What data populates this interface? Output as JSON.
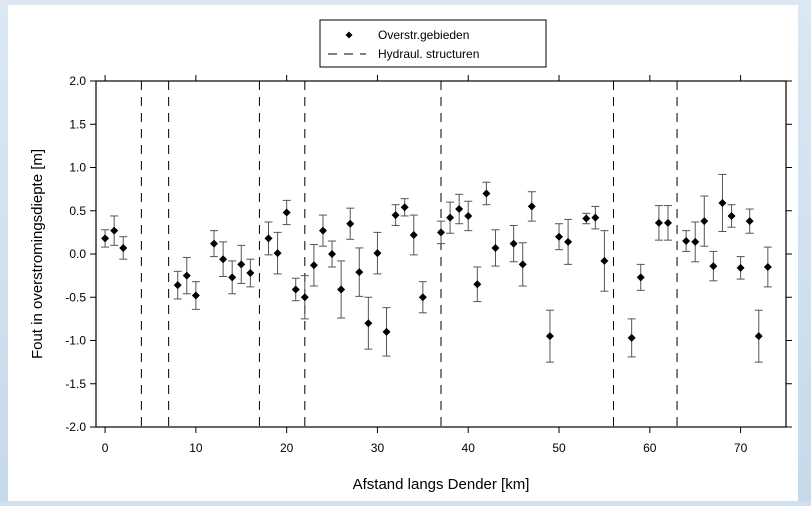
{
  "chart_data": {
    "type": "scatter",
    "title": "",
    "xlabel": "Afstand langs Dender [km]",
    "ylabel": "Fout in overstromingsdiepte [m]",
    "xlim": [
      -1,
      75
    ],
    "ylim": [
      -2.0,
      2.0
    ],
    "xticks": [
      0,
      10,
      20,
      30,
      40,
      50,
      60,
      70
    ],
    "yticks": [
      -2.0,
      -1.5,
      -1.0,
      -0.5,
      0.0,
      0.5,
      1.0,
      1.5,
      2.0
    ],
    "xtick_labels": [
      "0",
      "10",
      "20",
      "30",
      "40",
      "50",
      "60",
      "70"
    ],
    "ytick_labels": [
      "-2.0",
      "-1.5",
      "-1.0",
      "-0.5",
      "0.0",
      "0.5",
      "1.0",
      "1.5",
      "2.0"
    ],
    "grid": false,
    "legend_position": "top-center",
    "legend": [
      {
        "label": "Overstr.gebieden",
        "marker": "diamond"
      },
      {
        "label": "Hydraul. structuren",
        "marker": "dashed-line"
      }
    ],
    "series": [
      {
        "name": "Overstr.gebieden",
        "marker": "diamond",
        "points": [
          {
            "x": 0,
            "y": 0.18,
            "err": 0.1
          },
          {
            "x": 1,
            "y": 0.27,
            "err": 0.17
          },
          {
            "x": 2,
            "y": 0.07,
            "err": 0.13
          },
          {
            "x": 8,
            "y": -0.36,
            "err": 0.16
          },
          {
            "x": 9,
            "y": -0.25,
            "err": 0.21
          },
          {
            "x": 10,
            "y": -0.48,
            "err": 0.16
          },
          {
            "x": 12,
            "y": 0.12,
            "err": 0.15
          },
          {
            "x": 13,
            "y": -0.06,
            "err": 0.2
          },
          {
            "x": 14,
            "y": -0.27,
            "err": 0.19
          },
          {
            "x": 15,
            "y": -0.12,
            "err": 0.22
          },
          {
            "x": 16,
            "y": -0.22,
            "err": 0.16
          },
          {
            "x": 18,
            "y": 0.18,
            "err": 0.19
          },
          {
            "x": 19,
            "y": 0.01,
            "err": 0.24
          },
          {
            "x": 20,
            "y": 0.48,
            "err": 0.14
          },
          {
            "x": 21,
            "y": -0.41,
            "err": 0.13
          },
          {
            "x": 22,
            "y": -0.5,
            "err": 0.25
          },
          {
            "x": 23,
            "y": -0.13,
            "err": 0.24
          },
          {
            "x": 24,
            "y": 0.27,
            "err": 0.18
          },
          {
            "x": 25,
            "y": 0.0,
            "err": 0.15
          },
          {
            "x": 26,
            "y": -0.41,
            "err": 0.33
          },
          {
            "x": 27,
            "y": 0.35,
            "err": 0.18
          },
          {
            "x": 28,
            "y": -0.21,
            "err": 0.28
          },
          {
            "x": 29,
            "y": -0.8,
            "err": 0.3
          },
          {
            "x": 30,
            "y": 0.01,
            "err": 0.24
          },
          {
            "x": 31,
            "y": -0.9,
            "err": 0.28
          },
          {
            "x": 32,
            "y": 0.45,
            "err": 0.12
          },
          {
            "x": 33,
            "y": 0.54,
            "err": 0.1
          },
          {
            "x": 34,
            "y": 0.22,
            "err": 0.23
          },
          {
            "x": 35,
            "y": -0.5,
            "err": 0.18
          },
          {
            "x": 37,
            "y": 0.25,
            "err": 0.13
          },
          {
            "x": 38,
            "y": 0.42,
            "err": 0.18
          },
          {
            "x": 39,
            "y": 0.52,
            "err": 0.17
          },
          {
            "x": 40,
            "y": 0.44,
            "err": 0.17
          },
          {
            "x": 41,
            "y": -0.35,
            "err": 0.2
          },
          {
            "x": 42,
            "y": 0.7,
            "err": 0.13
          },
          {
            "x": 43,
            "y": 0.07,
            "err": 0.21
          },
          {
            "x": 45,
            "y": 0.12,
            "err": 0.21
          },
          {
            "x": 46,
            "y": -0.12,
            "err": 0.25
          },
          {
            "x": 47,
            "y": 0.55,
            "err": 0.17
          },
          {
            "x": 49,
            "y": -0.95,
            "err": 0.3
          },
          {
            "x": 50,
            "y": 0.2,
            "err": 0.15
          },
          {
            "x": 51,
            "y": 0.14,
            "err": 0.26
          },
          {
            "x": 53,
            "y": 0.41,
            "err": 0.06
          },
          {
            "x": 54,
            "y": 0.42,
            "err": 0.13
          },
          {
            "x": 55,
            "y": -0.08,
            "err": 0.35
          },
          {
            "x": 58,
            "y": -0.97,
            "err": 0.22
          },
          {
            "x": 59,
            "y": -0.27,
            "err": 0.15
          },
          {
            "x": 61,
            "y": 0.36,
            "err": 0.2
          },
          {
            "x": 62,
            "y": 0.36,
            "err": 0.2
          },
          {
            "x": 64,
            "y": 0.15,
            "err": 0.12
          },
          {
            "x": 65,
            "y": 0.14,
            "err": 0.23
          },
          {
            "x": 66,
            "y": 0.38,
            "err": 0.29
          },
          {
            "x": 67,
            "y": -0.14,
            "err": 0.17
          },
          {
            "x": 68,
            "y": 0.59,
            "err": 0.33
          },
          {
            "x": 69,
            "y": 0.44,
            "err": 0.13
          },
          {
            "x": 70,
            "y": -0.16,
            "err": 0.13
          },
          {
            "x": 71,
            "y": 0.38,
            "err": 0.14
          },
          {
            "x": 72,
            "y": -0.95,
            "err": 0.3
          },
          {
            "x": 73,
            "y": -0.15,
            "err": 0.23
          }
        ]
      }
    ],
    "structure_lines_x": [
      4,
      7,
      17,
      22,
      37,
      56,
      63
    ]
  }
}
